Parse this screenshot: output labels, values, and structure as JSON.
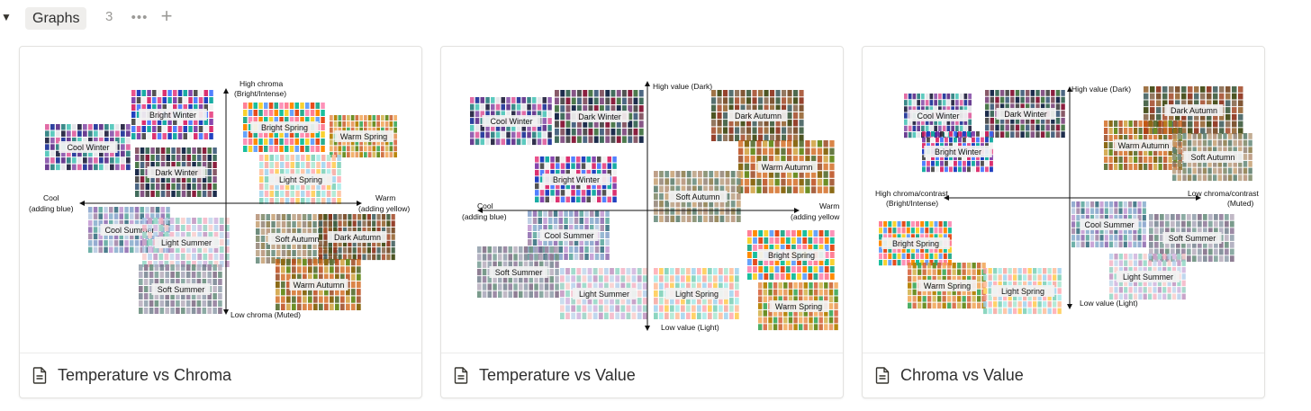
{
  "header": {
    "toggle_icon": "triangle-down-icon",
    "view_label": "Graphs",
    "count": "3",
    "more_icon": "ellipsis-icon",
    "add_icon": "plus-icon"
  },
  "cards": [
    {
      "title": "Temperature vs Chroma",
      "icon": "page-icon",
      "graph": {
        "axis_labels": {
          "top_1": "High chroma",
          "top_2": "(Bright/Intense)",
          "bottom": "Low chroma (Muted)",
          "left_1": "Cool",
          "left_2": "(adding blue)",
          "right_1": "Warm",
          "right_2": "(adding yellow)"
        },
        "palettes": [
          "Bright Winter",
          "Cool Winter",
          "Bright Spring",
          "Warm Spring",
          "Dark Winter",
          "Light Spring",
          "Cool Summer",
          "Light Summer",
          "Soft Autumn",
          "Dark Autumn",
          "Soft Summer",
          "Warm Autumn"
        ]
      }
    },
    {
      "title": "Temperature vs Value",
      "icon": "page-icon",
      "graph": {
        "axis_labels": {
          "top_1": "High value (Dark)",
          "bottom": "Low value (Light)",
          "left_1": "Cool",
          "left_2": "(adding blue)",
          "right_1": "Warm",
          "right_2": "(adding yellow"
        },
        "palettes": [
          "Cool Winter",
          "Dark Winter",
          "Dark Autumn",
          "Warm Autumn",
          "Bright Winter",
          "Soft Autumn",
          "Cool Summer",
          "Soft Summer",
          "Light Summer",
          "Light Spring",
          "Bright Spring",
          "Warm Spring"
        ]
      }
    },
    {
      "title": "Chroma vs Value",
      "icon": "page-icon",
      "graph": {
        "axis_labels": {
          "top_1": "High value (Dark)",
          "bottom": "Low value (Light)",
          "left_1": "High chroma/contrast",
          "left_2": "(Bright/Intense)",
          "right_1": "Low chroma/contrast",
          "right_2": "(Muted)"
        },
        "palettes": [
          "Cool Winter",
          "Dark Winter",
          "Bright Winter",
          "Dark Autumn",
          "Warm Autumn",
          "Soft Autumn",
          "Cool Summer",
          "Soft Summer",
          "Bright Spring",
          "Light Summer",
          "Warm Spring",
          "Light Spring"
        ]
      }
    }
  ]
}
